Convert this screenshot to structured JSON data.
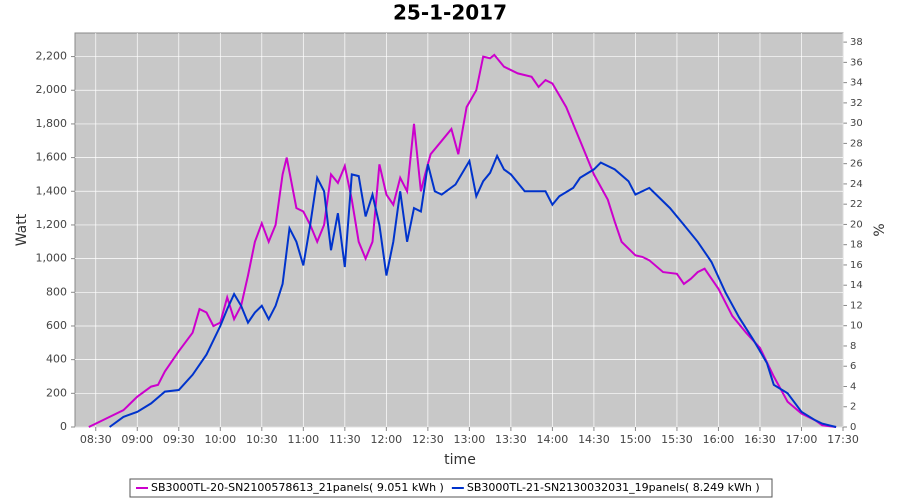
{
  "chart_data": {
    "type": "line",
    "title": "25-1-2017",
    "xlabel": "time",
    "ylabel": "Watt",
    "y2label": "%",
    "xlim": [
      "08:15",
      "17:30"
    ],
    "xticks": [
      "08:30",
      "09:00",
      "09:30",
      "10:00",
      "10:30",
      "11:00",
      "11:30",
      "12:00",
      "12:30",
      "13:00",
      "13:30",
      "14:00",
      "14:30",
      "15:00",
      "15:30",
      "16:00",
      "16:30",
      "17:00",
      "17:30"
    ],
    "ylim": [
      0,
      2340
    ],
    "yticks": [
      0,
      200,
      400,
      600,
      800,
      {
        "value": 1000,
        "label": "1,000"
      },
      {
        "value": 1200,
        "label": "1,200"
      },
      {
        "value": 1400,
        "label": "1,400"
      },
      {
        "value": 1600,
        "label": "1,600"
      },
      {
        "value": 1800,
        "label": "1,800"
      },
      {
        "value": 2000,
        "label": "2,000"
      },
      {
        "value": 2200,
        "label": "2,200"
      }
    ],
    "y2lim": [
      0,
      38.9
    ],
    "y2ticks": [
      0,
      2,
      4,
      6,
      8,
      10,
      12,
      14,
      16,
      18,
      20,
      22,
      24,
      26,
      28,
      30,
      32,
      34,
      36,
      38
    ],
    "grid": true,
    "legend": "bottom",
    "series": [
      {
        "name": "SB3000TL-20-SN2100578613_21panels( 9.051 kWh )",
        "color": "#cc00cc",
        "x": [
          "08:25",
          "08:30",
          "08:40",
          "08:50",
          "09:00",
          "09:10",
          "09:15",
          "09:20",
          "09:30",
          "09:40",
          "09:45",
          "09:50",
          "09:55",
          "10:00",
          "10:05",
          "10:10",
          "10:15",
          "10:20",
          "10:25",
          "10:30",
          "10:35",
          "10:40",
          "10:45",
          "10:48",
          "10:55",
          "11:00",
          "11:05",
          "11:10",
          "11:15",
          "11:20",
          "11:25",
          "11:30",
          "11:35",
          "11:40",
          "11:45",
          "11:50",
          "11:55",
          "12:00",
          "12:05",
          "12:10",
          "12:15",
          "12:20",
          "12:25",
          "12:28",
          "12:32",
          "12:40",
          "12:47",
          "12:52",
          "12:58",
          "13:05",
          "13:10",
          "13:15",
          "13:18",
          "13:25",
          "13:35",
          "13:45",
          "13:50",
          "13:55",
          "14:00",
          "14:10",
          "14:20",
          "14:30",
          "14:40",
          "14:45",
          "14:50",
          "15:00",
          "15:05",
          "15:10",
          "15:20",
          "15:30",
          "15:35",
          "15:40",
          "15:45",
          "15:50",
          "16:00",
          "16:10",
          "16:20",
          "16:30",
          "16:40",
          "16:50",
          "17:00",
          "17:10",
          "17:15",
          "17:25"
        ],
        "values": [
          0,
          20,
          60,
          100,
          180,
          240,
          250,
          330,
          450,
          560,
          700,
          680,
          600,
          620,
          770,
          640,
          720,
          900,
          1100,
          1210,
          1100,
          1200,
          1500,
          1600,
          1300,
          1280,
          1200,
          1100,
          1200,
          1500,
          1450,
          1550,
          1350,
          1100,
          1000,
          1100,
          1560,
          1380,
          1320,
          1480,
          1400,
          1800,
          1400,
          1500,
          1620,
          1700,
          1770,
          1620,
          1900,
          2000,
          2200,
          2190,
          2210,
          2140,
          2100,
          2080,
          2020,
          2060,
          2040,
          1900,
          1700,
          1500,
          1350,
          1220,
          1100,
          1020,
          1010,
          990,
          920,
          910,
          850,
          880,
          920,
          940,
          820,
          660,
          560,
          470,
          300,
          150,
          80,
          40,
          10,
          0
        ]
      },
      {
        "name": "SB3000TL-21-SN2130032031_19panels( 8.249 kWh )",
        "color": "#0033cc",
        "x": [
          "08:40",
          "08:50",
          "09:00",
          "09:10",
          "09:20",
          "09:30",
          "09:40",
          "09:50",
          "10:00",
          "10:05",
          "10:10",
          "10:15",
          "10:20",
          "10:25",
          "10:30",
          "10:35",
          "10:40",
          "10:45",
          "10:50",
          "10:55",
          "11:00",
          "11:05",
          "11:10",
          "11:15",
          "11:20",
          "11:25",
          "11:30",
          "11:35",
          "11:40",
          "11:45",
          "11:50",
          "11:55",
          "12:00",
          "12:05",
          "12:10",
          "12:15",
          "12:20",
          "12:25",
          "12:30",
          "12:35",
          "12:40",
          "12:50",
          "13:00",
          "13:05",
          "13:10",
          "13:15",
          "13:20",
          "13:25",
          "13:30",
          "13:40",
          "13:55",
          "14:00",
          "14:05",
          "14:15",
          "14:20",
          "14:30",
          "14:35",
          "14:45",
          "14:55",
          "15:00",
          "15:10",
          "15:15",
          "15:25",
          "15:35",
          "15:45",
          "15:55",
          "16:05",
          "16:15",
          "16:25",
          "16:35",
          "16:40",
          "16:50",
          "17:00",
          "17:10",
          "17:15",
          "17:20",
          "17:25"
        ],
        "values": [
          0,
          60,
          90,
          140,
          210,
          220,
          310,
          430,
          600,
          700,
          790,
          720,
          620,
          680,
          720,
          640,
          720,
          850,
          1180,
          1100,
          960,
          1200,
          1480,
          1400,
          1050,
          1270,
          950,
          1500,
          1490,
          1250,
          1380,
          1200,
          900,
          1100,
          1400,
          1100,
          1300,
          1280,
          1560,
          1400,
          1380,
          1440,
          1580,
          1370,
          1460,
          1510,
          1610,
          1530,
          1500,
          1400,
          1400,
          1320,
          1370,
          1420,
          1480,
          1530,
          1570,
          1530,
          1460,
          1380,
          1420,
          1380,
          1300,
          1200,
          1100,
          980,
          800,
          650,
          520,
          380,
          250,
          200,
          90,
          40,
          20,
          10,
          0
        ]
      }
    ]
  }
}
